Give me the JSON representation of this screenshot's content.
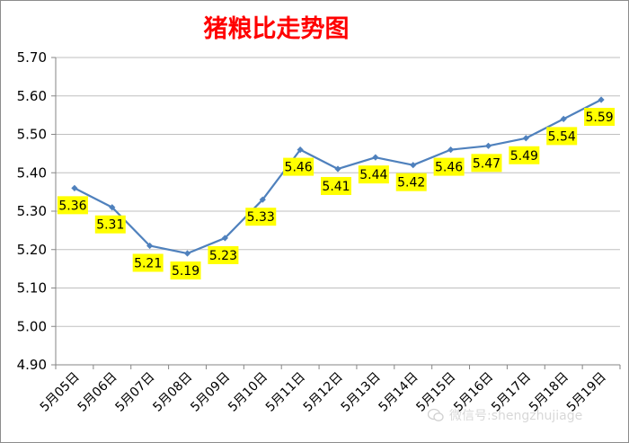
{
  "chart_data": {
    "type": "line",
    "title": "猪粮比走势图",
    "categories": [
      "5月05日",
      "5月06日",
      "5月07日",
      "5月08日",
      "5月09日",
      "5月10日",
      "5月11日",
      "5月12日",
      "5月13日",
      "5月14日",
      "5月15日",
      "5月16日",
      "5月17日",
      "5月18日",
      "5月19日"
    ],
    "series": [
      {
        "values": [
          5.36,
          5.31,
          5.21,
          5.19,
          5.23,
          5.33,
          5.46,
          5.41,
          5.44,
          5.42,
          5.46,
          5.47,
          5.49,
          5.54,
          5.59
        ]
      }
    ],
    "data_labels": [
      "5.36",
      "5.31",
      "5.21",
      "5.19",
      "5.23",
      "5.33",
      "5.46",
      "5.41",
      "5.44",
      "5.42",
      "5.46",
      "5.47",
      "5.49",
      "5.54",
      "5.59"
    ],
    "y_ticks": [
      "4.90",
      "5.00",
      "5.10",
      "5.20",
      "5.30",
      "5.40",
      "5.50",
      "5.60",
      "5.70"
    ],
    "ylim": [
      4.9,
      5.7
    ],
    "grid": true,
    "colors": {
      "line": "#4f81bd",
      "label_background": "#ffff00",
      "title": "#ff0000",
      "grid": "#bfbfbf"
    }
  },
  "watermark": {
    "text": "微信号:shengzhujiage"
  }
}
